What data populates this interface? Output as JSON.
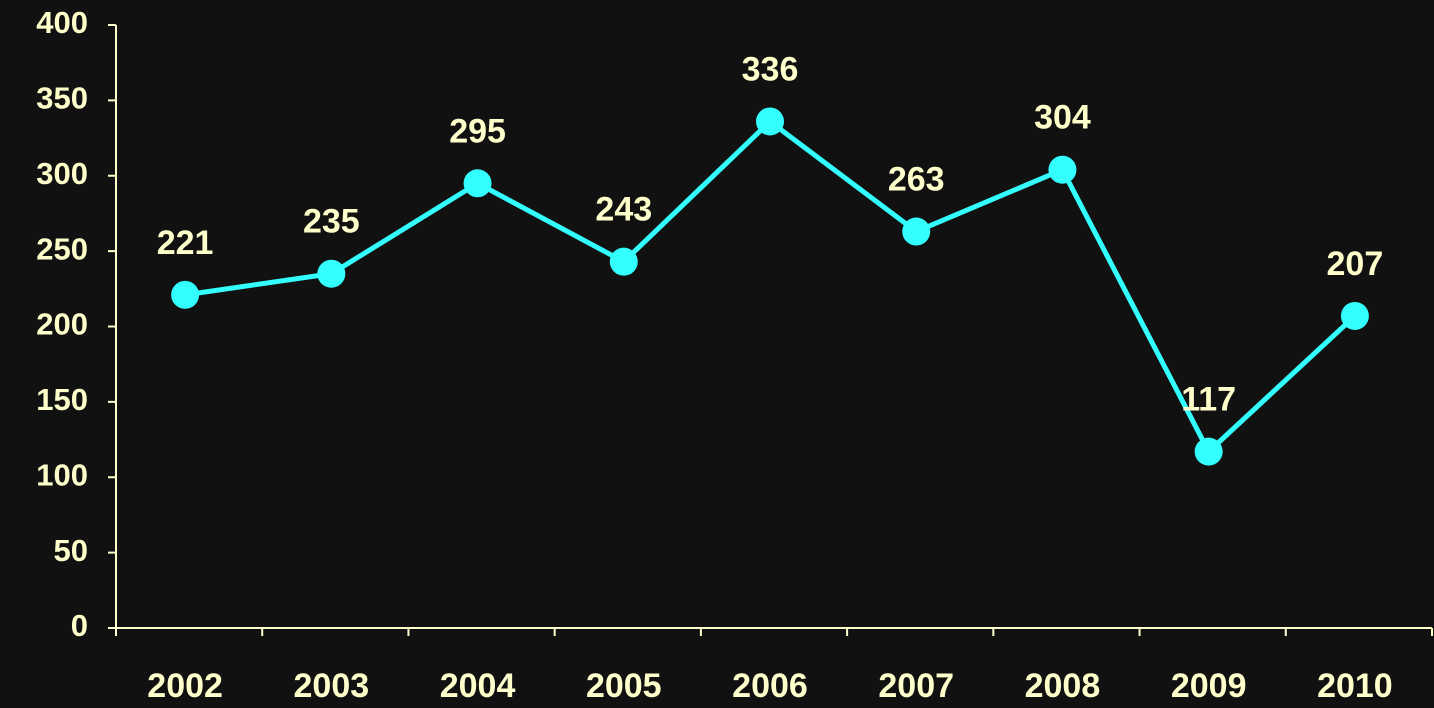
{
  "chart_data": {
    "type": "line",
    "categories": [
      "2002",
      "2003",
      "2004",
      "2005",
      "2006",
      "2007",
      "2008",
      "2009",
      "2010"
    ],
    "values": [
      221,
      235,
      295,
      243,
      336,
      263,
      304,
      117,
      207
    ],
    "color": "#33ffff",
    "ylim": [
      0,
      400
    ],
    "yticks": [
      0,
      50,
      100,
      150,
      200,
      250,
      300,
      350,
      400
    ],
    "grid": false
  }
}
